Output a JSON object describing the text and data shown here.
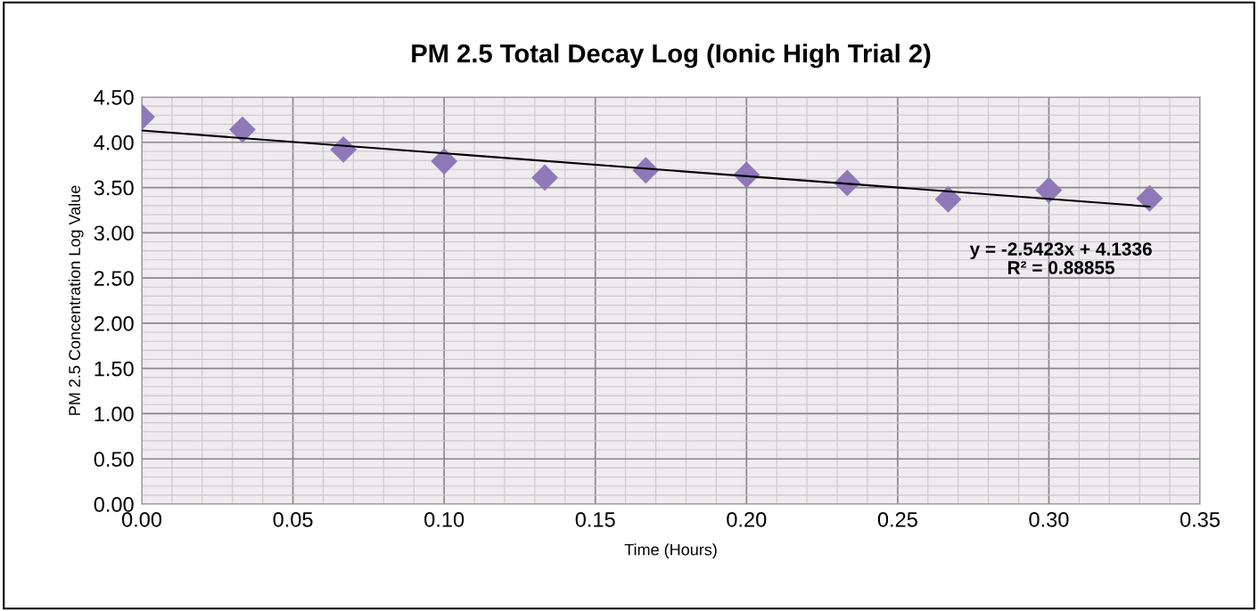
{
  "chart_data": {
    "type": "scatter",
    "title": "PM 2.5 Total Decay Log (Ionic High Trial 2)",
    "xlabel": "Time (Hours)",
    "ylabel": "PM 2.5 Concentration Log Value",
    "series": [
      {
        "color": "#8e78b8",
        "marker": "diamond",
        "x": [
          0,
          0.0333,
          0.0667,
          0.1,
          0.1333,
          0.1667,
          0.2,
          0.2333,
          0.2667,
          0.3,
          0.3333
        ],
        "values": [
          4.28,
          4.14,
          3.92,
          3.79,
          3.61,
          3.69,
          3.64,
          3.55,
          3.37,
          3.47,
          3.38
        ]
      },
      {
        "type": "line",
        "color": "#000000",
        "marker": "none",
        "line_style": "solid",
        "x": [
          0,
          0.3333
        ],
        "values": [
          4.13,
          3.29
        ]
      }
    ],
    "annotations": [
      "y = -2.5423x + 4.1336\nR² = 0.88855"
    ],
    "xlim": [
      0,
      0.35
    ],
    "xticks": [
      {
        "value": 0,
        "label": "0.00"
      },
      {
        "value": 0.05,
        "label": "0.05"
      },
      {
        "value": 0.1,
        "label": "0.10"
      },
      {
        "value": 0.15,
        "label": "0.15"
      },
      {
        "value": 0.2,
        "label": "0.20"
      },
      {
        "value": 0.25,
        "label": "0.25"
      },
      {
        "value": 0.3,
        "label": "0.30"
      },
      {
        "value": 0.35,
        "label": "0.35"
      }
    ],
    "ylim": [
      0,
      4.5
    ],
    "yticks": [
      {
        "value": 0,
        "label": "0.00"
      },
      {
        "value": 0.5,
        "label": "0.50"
      },
      {
        "value": 1,
        "label": "1.00"
      },
      {
        "value": 1.5,
        "label": "1.50"
      },
      {
        "value": 2,
        "label": "2.00"
      },
      {
        "value": 2.5,
        "label": "2.50"
      },
      {
        "value": 3,
        "label": "3.00"
      },
      {
        "value": 3.5,
        "label": "3.50"
      },
      {
        "value": 4,
        "label": "4.00"
      },
      {
        "value": 4.5,
        "label": "4.50"
      }
    ],
    "grid": true,
    "legend": false
  }
}
